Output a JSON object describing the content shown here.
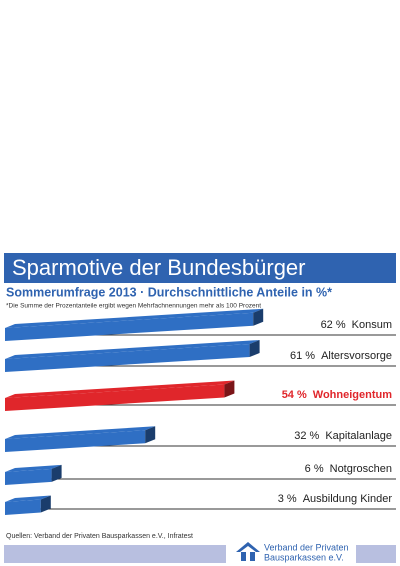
{
  "chart_data": {
    "type": "bar",
    "title": "Sparmotive der Bundesbürger",
    "subtitle": "Sommerumfrage 2013 · Durchschnittliche Anteile in %*",
    "footnote": "*Die Summe der Prozentanteile ergibt wegen Mehrfachnennungen mehr als 100 Prozent",
    "categories": [
      "Konsum",
      "Altersvorsorge",
      "Wohneigentum",
      "Kapitalanlage",
      "Notgroschen",
      "Ausbildung Kinder"
    ],
    "values": [
      62,
      61,
      54,
      32,
      6,
      3
    ],
    "value_labels": [
      "62 %",
      "61 %",
      "54 %",
      "32 %",
      "6 %",
      "3 %"
    ],
    "colors": [
      "#2f6fc4",
      "#2f6fc4",
      "#e0262b",
      "#2f6fc4",
      "#2f6fc4",
      "#2f6fc4"
    ],
    "label_colors": [
      "#222222",
      "#222222",
      "#e0262b",
      "#222222",
      "#222222",
      "#222222"
    ],
    "source": "Quellen: Verband der Privaten Bausparkassen e.V., Infratest",
    "logo_lines": [
      "Verband der Privaten",
      "Bausparkassen e.V."
    ]
  }
}
